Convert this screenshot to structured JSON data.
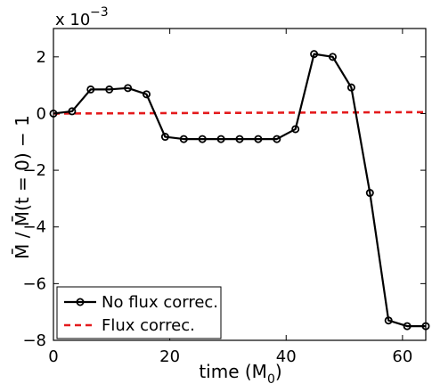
{
  "chart_data": {
    "type": "line",
    "xlabel": "time (M",
    "xlabel_sub": "0",
    "xlabel_close": ")",
    "ylabel": "M̄ / M̄(t = 0) − 1",
    "y_multiplier_base": "x 10",
    "y_multiplier_exp": "−3",
    "xlim": [
      0,
      64
    ],
    "ylim": [
      -8,
      3
    ],
    "xticks": [
      0,
      20,
      40,
      60
    ],
    "yticks": [
      -8,
      -6,
      -4,
      -2,
      0,
      2
    ],
    "ytick_labels": [
      "−8",
      "−6",
      "−4",
      "−2",
      "0",
      "2"
    ],
    "grid": false,
    "legend_position": "bottom-left",
    "series": [
      {
        "name": "No flux correc.",
        "color": "#000000",
        "style": "solid-circle-markers",
        "x": [
          0,
          3.2,
          6.4,
          9.6,
          12.8,
          16.0,
          19.2,
          22.4,
          25.6,
          28.8,
          32.0,
          35.2,
          38.4,
          41.6,
          44.8,
          48.0,
          51.2,
          54.4,
          57.6,
          60.8,
          64.0
        ],
        "y": [
          0.0,
          0.08,
          0.85,
          0.85,
          0.9,
          0.68,
          -0.82,
          -0.9,
          -0.9,
          -0.9,
          -0.9,
          -0.9,
          -0.9,
          -0.55,
          2.1,
          2.0,
          0.92,
          -2.8,
          -7.3,
          -7.5,
          -7.5
        ]
      },
      {
        "name": "Flux correc.",
        "color": "#e41a1c",
        "style": "dashed",
        "x": [
          0,
          64
        ],
        "y": [
          0.0,
          0.05
        ]
      }
    ]
  }
}
